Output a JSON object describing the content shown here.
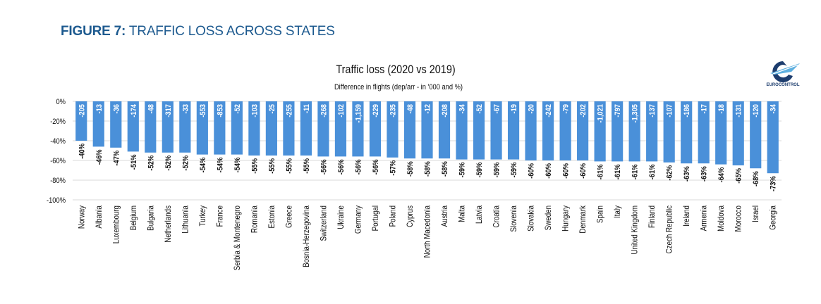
{
  "figure": {
    "label": "FIGURE 7:",
    "title": "TRAFFIC LOSS ACROSS STATES",
    "title_color": "#1d5a8f"
  },
  "logo": {
    "text": "EUROCONTROL",
    "icon": "eurocontrol-logo-icon"
  },
  "chart_data": {
    "type": "bar",
    "title": "Traffic loss (2020 vs 2019)",
    "subtitle": "Difference in flights (dep/arr - in '000 and %)",
    "xlabel": "",
    "ylabel": "",
    "ylim": [
      -100,
      0
    ],
    "yticks": [
      0,
      -20,
      -40,
      -60,
      -80,
      -100
    ],
    "ytick_labels": [
      "0%",
      "-20%",
      "-40%",
      "-60%",
      "-80%",
      "-100%"
    ],
    "grid": true,
    "bar_color": "#4a90d9",
    "categories": [
      "Norway",
      "Albania",
      "Luxembourg",
      "Belgium",
      "Bulgaria",
      "Netherlands",
      "Lithuania",
      "Turkey",
      "France",
      "Serbia & Montenegro",
      "Romania",
      "Estonia",
      "Greece",
      "Bosnia-Herzegovina",
      "Switzerland",
      "Ukraine",
      "Germany",
      "Portugal",
      "Poland",
      "Cyprus",
      "North Macedonia",
      "Austria",
      "Malta",
      "Latvia",
      "Croatia",
      "Slovenia",
      "Slovakia",
      "Sweden",
      "Hungary",
      "Denmark",
      "Spain",
      "Italy",
      "United Kingdom",
      "Finland",
      "Czech Republic",
      "Ireland",
      "Armenia",
      "Moldova",
      "Morocco",
      "Israel",
      "Georgia"
    ],
    "series": [
      {
        "name": "Traffic loss (%)",
        "values": [
          -40,
          -46,
          -47,
          -51,
          -52,
          -52,
          -52,
          -54,
          -54,
          -54,
          -55,
          -55,
          -55,
          -55,
          -56,
          -56,
          -56,
          -56,
          -57,
          -58,
          -58,
          -58,
          -59,
          -59,
          -59,
          -59,
          -60,
          -60,
          -60,
          -60,
          -61,
          -61,
          -61,
          -61,
          -62,
          -63,
          -63,
          -64,
          -65,
          -68,
          -73
        ],
        "labels": [
          "-40%",
          "-46%",
          "-47%",
          "-51%",
          "-52%",
          "-52%",
          "-52%",
          "-54%",
          "-54%",
          "-54%",
          "-55%",
          "-55%",
          "-55%",
          "-55%",
          "-56%",
          "-56%",
          "-56%",
          "-56%",
          "-57%",
          "-58%",
          "-58%",
          "-58%",
          "-59%",
          "-59%",
          "-59%",
          "-59%",
          "-60%",
          "-60%",
          "-60%",
          "-60%",
          "-61%",
          "-61%",
          "-61%",
          "-61%",
          "-62%",
          "-63%",
          "-63%",
          "-64%",
          "-65%",
          "-68%",
          "-73%"
        ]
      },
      {
        "name": "Difference in flights ('000)",
        "values": [
          -205,
          -13,
          -36,
          -174,
          -48,
          -317,
          -33,
          -553,
          -853,
          -52,
          -103,
          -25,
          -255,
          -11,
          -268,
          -102,
          -1159,
          -229,
          -235,
          -48,
          -12,
          -208,
          -34,
          -52,
          -67,
          -19,
          -20,
          -242,
          -79,
          -202,
          -1021,
          -797,
          -1305,
          -137,
          -107,
          -186,
          -17,
          -18,
          -131,
          -120,
          -34
        ],
        "labels": [
          "-205",
          "-13",
          "-36",
          "-174",
          "-48",
          "-317",
          "-33",
          "-553",
          "-853",
          "-52",
          "-103",
          "-25",
          "-255",
          "-11",
          "-268",
          "-102",
          "-1,159",
          "-229",
          "-235",
          "-48",
          "-12",
          "-208",
          "-34",
          "-52",
          "-67",
          "-19",
          "-20",
          "-242",
          "-79",
          "-202",
          "-1,021",
          "-797",
          "-1,305",
          "-137",
          "-107",
          "-186",
          "-17",
          "-18",
          "-131",
          "-120",
          "-34"
        ]
      }
    ]
  }
}
